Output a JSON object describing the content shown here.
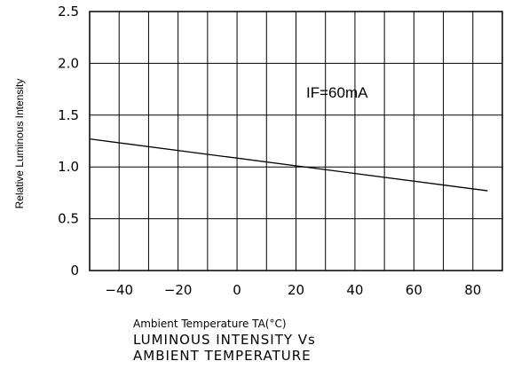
{
  "chart_data": {
    "type": "line",
    "title": "",
    "annotation": "IF=60mA",
    "xlabel": "Ambient Temperature TA(°C)",
    "ylabel": "Relative Luminous Intensity",
    "caption": [
      "LUMINOUS INTENSITY Vs",
      "AMBIENT TEMPERATURE"
    ],
    "xlim": [
      -50,
      90
    ],
    "ylim": [
      0,
      2.5
    ],
    "x_ticks": [
      -40,
      -20,
      0,
      20,
      40,
      60,
      80
    ],
    "x_tick_labels": [
      "−40",
      "−20",
      "0",
      "20",
      "40",
      "60",
      "80"
    ],
    "y_ticks": [
      0,
      0.5,
      1.0,
      1.5,
      2.0,
      2.5
    ],
    "y_tick_labels": [
      "0",
      "0.5",
      "1.0",
      "1.5",
      "2.0",
      "2.5"
    ],
    "grid": true,
    "series": [
      {
        "x": [
          -50,
          85
        ],
        "y": [
          1.27,
          0.77
        ]
      }
    ],
    "colors": {
      "line": "#000000",
      "grid": "#000000"
    }
  }
}
